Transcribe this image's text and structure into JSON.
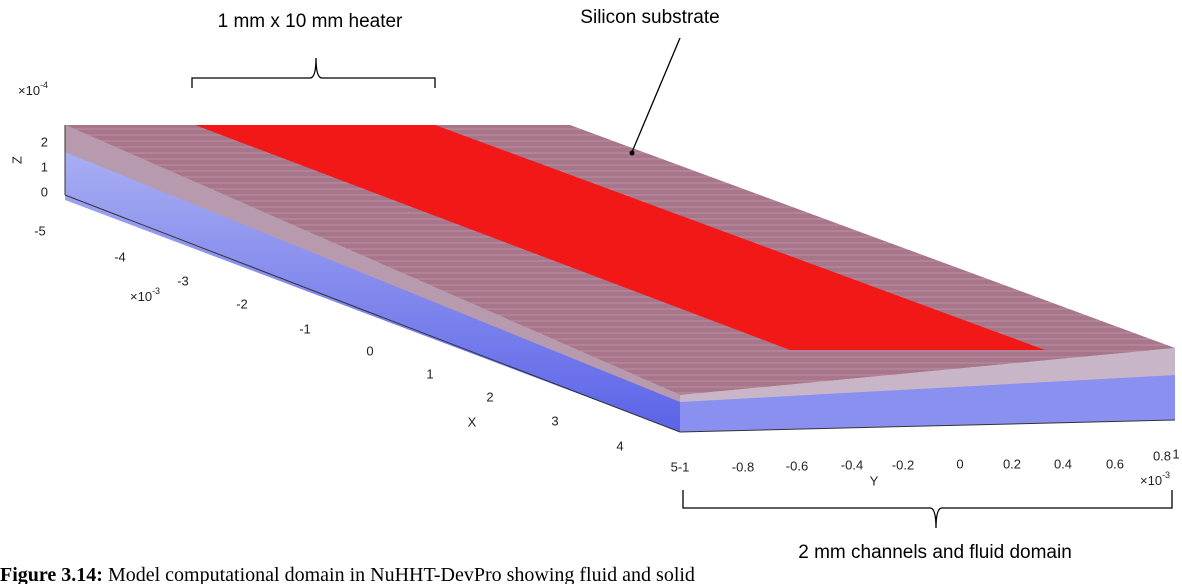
{
  "annotations": {
    "heater": "1 mm x 10 mm heater",
    "substrate": "Silicon substrate",
    "channels": "2 mm channels and fluid domain"
  },
  "axes": {
    "z": {
      "label": "Z",
      "ticks": [
        "2",
        "1",
        "0"
      ],
      "scale": {
        "base": "×10",
        "exp": "-4"
      }
    },
    "x": {
      "label": "X",
      "ticks": [
        "-5",
        "-4",
        "-3",
        "-2",
        "-1",
        "0",
        "1",
        "2",
        "3",
        "4",
        "5-1"
      ],
      "scale": {
        "base": "×10",
        "exp": "-3"
      }
    },
    "y": {
      "label": "Y",
      "ticks": [
        "-0.8",
        "-0.6",
        "-0.4",
        "-0.2",
        "0",
        "0.2",
        "0.4",
        "0.6",
        "0.8",
        "1"
      ],
      "scale": {
        "base": "×10",
        "exp": "-3"
      }
    }
  },
  "caption": {
    "label": "Figure 3.14:",
    "text": "Model computational domain in NuHHT-DevPro showing fluid and solid"
  }
}
